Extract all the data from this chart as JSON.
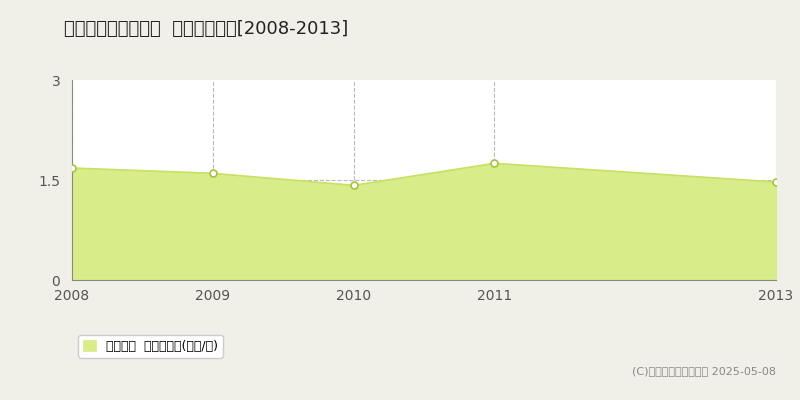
{
  "title": "球磨郡球磨村一勝地  土地価格推移[2008-2013]",
  "years": [
    2008,
    2009,
    2010,
    2011,
    2013
  ],
  "values": [
    1.68,
    1.6,
    1.42,
    1.75,
    1.47
  ],
  "line_color": "#c8e064",
  "fill_color": "#d8ed8a",
  "marker_facecolor": "#ffffff",
  "marker_edgecolor": "#a8c040",
  "ylim": [
    0,
    3
  ],
  "yticks": [
    0,
    1.5,
    3
  ],
  "ytick_labels": [
    "0",
    "1.5",
    "3"
  ],
  "grid_color": "#bbbbbb",
  "plot_bg_color": "#ffffff",
  "fig_bg_color": "#f0f0e8",
  "legend_label": "土地価格  平均坪単価(万円/坪)",
  "copyright_text": "(C)土地価格ドットコム 2025-05-08",
  "title_fontsize": 13,
  "axis_fontsize": 10,
  "legend_fontsize": 9,
  "spine_color": "#888888"
}
